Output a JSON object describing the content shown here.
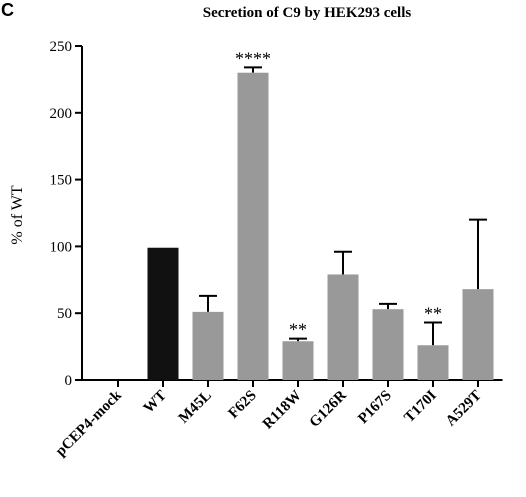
{
  "panel_label": "C",
  "chart_data": {
    "type": "bar",
    "title": "Secretion of C9 by HEK293 cells",
    "xlabel": "",
    "ylabel": "% of WT",
    "ylim": [
      0,
      250
    ],
    "yticks": [
      0,
      50,
      100,
      150,
      200,
      250
    ],
    "grid": false,
    "legend": "none",
    "categories": [
      "pCEP4-mock",
      "WT",
      "M45L",
      "F62S",
      "R118W",
      "G126R",
      "P167S",
      "T170I",
      "A529T"
    ],
    "values": [
      0,
      99,
      51,
      230,
      29,
      79,
      53,
      26,
      68
    ],
    "errors_upper": [
      0,
      0,
      12,
      4,
      2,
      17,
      4,
      17,
      52
    ],
    "significance": [
      "",
      "",
      "",
      "****",
      "**",
      "",
      "",
      "**",
      ""
    ],
    "bar_colors": [
      "#999999",
      "#111111",
      "#999999",
      "#999999",
      "#999999",
      "#999999",
      "#999999",
      "#999999",
      "#999999"
    ]
  }
}
